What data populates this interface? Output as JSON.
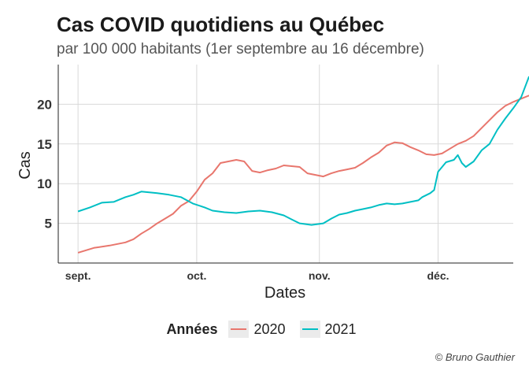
{
  "title": "Cas COVID quotidiens au Québec",
  "subtitle": "par 100 000 habitants (1er septembre au 16 décembre)",
  "caption": "© Bruno Gauthier",
  "legend": {
    "title": "Années"
  },
  "chart_data": {
    "type": "line",
    "xlabel": "Dates",
    "ylabel": "Cas",
    "x_ticks": [
      {
        "label": "sept.",
        "day": 1
      },
      {
        "label": "oct.",
        "day": 31
      },
      {
        "label": "nov.",
        "day": 62
      },
      {
        "label": "déc.",
        "day": 92
      }
    ],
    "y_ticks": [
      5,
      10,
      15,
      20
    ],
    "xlim": [
      -4,
      111
    ],
    "ylim": [
      0,
      25
    ],
    "grid": true,
    "legend_position": "bottom",
    "series": [
      {
        "name": "2020",
        "color": "#e8766d",
        "points": [
          [
            1,
            1.3
          ],
          [
            5,
            1.9
          ],
          [
            9,
            2.2
          ],
          [
            13,
            2.6
          ],
          [
            15,
            3.0
          ],
          [
            17,
            3.7
          ],
          [
            19,
            4.3
          ],
          [
            21,
            5.0
          ],
          [
            23,
            5.6
          ],
          [
            25,
            6.2
          ],
          [
            27,
            7.2
          ],
          [
            29,
            7.8
          ],
          [
            31,
            9.0
          ],
          [
            33,
            10.5
          ],
          [
            35,
            11.3
          ],
          [
            37,
            12.6
          ],
          [
            39,
            12.8
          ],
          [
            41,
            13.0
          ],
          [
            43,
            12.8
          ],
          [
            45,
            11.6
          ],
          [
            47,
            11.4
          ],
          [
            49,
            11.7
          ],
          [
            51,
            11.9
          ],
          [
            53,
            12.3
          ],
          [
            55,
            12.2
          ],
          [
            57,
            12.1
          ],
          [
            59,
            11.3
          ],
          [
            61,
            11.1
          ],
          [
            63,
            10.9
          ],
          [
            65,
            11.3
          ],
          [
            67,
            11.6
          ],
          [
            69,
            11.8
          ],
          [
            71,
            12.0
          ],
          [
            73,
            12.6
          ],
          [
            75,
            13.3
          ],
          [
            77,
            13.9
          ],
          [
            79,
            14.8
          ],
          [
            81,
            15.2
          ],
          [
            83,
            15.1
          ],
          [
            85,
            14.6
          ],
          [
            87,
            14.2
          ],
          [
            89,
            13.7
          ],
          [
            91,
            13.6
          ],
          [
            93,
            13.8
          ],
          [
            95,
            14.4
          ],
          [
            97,
            15.0
          ],
          [
            99,
            15.4
          ],
          [
            101,
            16.0
          ],
          [
            103,
            17.0
          ],
          [
            105,
            18.0
          ],
          [
            107,
            19.0
          ],
          [
            109,
            19.8
          ],
          [
            111,
            20.3
          ],
          [
            113,
            20.7
          ],
          [
            115,
            21.1
          ]
        ]
      },
      {
        "name": "2021",
        "color": "#00bfc4",
        "points": [
          [
            1,
            6.5
          ],
          [
            4,
            7.0
          ],
          [
            7,
            7.6
          ],
          [
            10,
            7.7
          ],
          [
            13,
            8.3
          ],
          [
            15,
            8.6
          ],
          [
            17,
            9.0
          ],
          [
            19,
            8.9
          ],
          [
            21,
            8.8
          ],
          [
            24,
            8.6
          ],
          [
            27,
            8.3
          ],
          [
            30,
            7.5
          ],
          [
            33,
            7.0
          ],
          [
            35,
            6.6
          ],
          [
            38,
            6.4
          ],
          [
            41,
            6.3
          ],
          [
            44,
            6.5
          ],
          [
            47,
            6.6
          ],
          [
            50,
            6.4
          ],
          [
            53,
            6.0
          ],
          [
            55,
            5.5
          ],
          [
            57,
            5.0
          ],
          [
            60,
            4.8
          ],
          [
            63,
            5.0
          ],
          [
            65,
            5.6
          ],
          [
            67,
            6.1
          ],
          [
            69,
            6.3
          ],
          [
            71,
            6.6
          ],
          [
            73,
            6.8
          ],
          [
            75,
            7.0
          ],
          [
            77,
            7.3
          ],
          [
            79,
            7.5
          ],
          [
            81,
            7.4
          ],
          [
            83,
            7.5
          ],
          [
            85,
            7.7
          ],
          [
            87,
            7.9
          ],
          [
            88,
            8.3
          ],
          [
            90,
            8.8
          ],
          [
            91,
            9.2
          ],
          [
            92,
            11.5
          ],
          [
            94,
            12.7
          ],
          [
            96,
            13.0
          ],
          [
            97,
            13.6
          ],
          [
            98,
            12.6
          ],
          [
            99,
            12.1
          ],
          [
            101,
            12.8
          ],
          [
            103,
            14.2
          ],
          [
            105,
            15.0
          ],
          [
            107,
            16.8
          ],
          [
            109,
            18.2
          ],
          [
            111,
            19.5
          ],
          [
            113,
            20.9
          ],
          [
            115,
            23.5
          ]
        ]
      }
    ]
  }
}
